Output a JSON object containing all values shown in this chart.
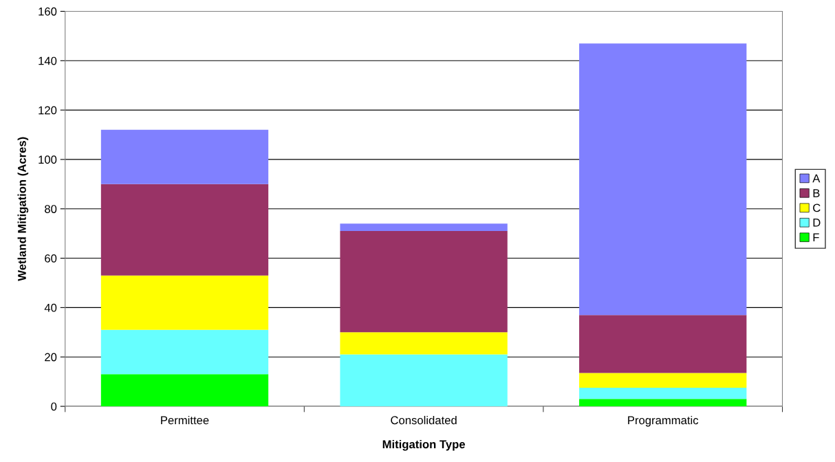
{
  "chart_data": {
    "type": "bar",
    "stacked": true,
    "xlabel": "Mitigation Type",
    "ylabel": "Wetland Mitigation (Acres)",
    "categories": [
      "Permittee",
      "Consolidated",
      "Programmatic"
    ],
    "series": [
      {
        "name": "F",
        "color": "#00ff00",
        "values": [
          13,
          0,
          3
        ]
      },
      {
        "name": "D",
        "color": "#66ffff",
        "values": [
          18,
          21,
          4.5
        ]
      },
      {
        "name": "C",
        "color": "#ffff00",
        "values": [
          22,
          9,
          6
        ]
      },
      {
        "name": "B",
        "color": "#993366",
        "values": [
          37,
          41,
          23.5
        ]
      },
      {
        "name": "A",
        "color": "#8080ff",
        "values": [
          22,
          3,
          110
        ]
      }
    ],
    "ylim": [
      0,
      160
    ],
    "yticks": [
      0,
      20,
      40,
      60,
      80,
      100,
      120,
      140,
      160
    ],
    "grid": "y",
    "legend": "right"
  }
}
